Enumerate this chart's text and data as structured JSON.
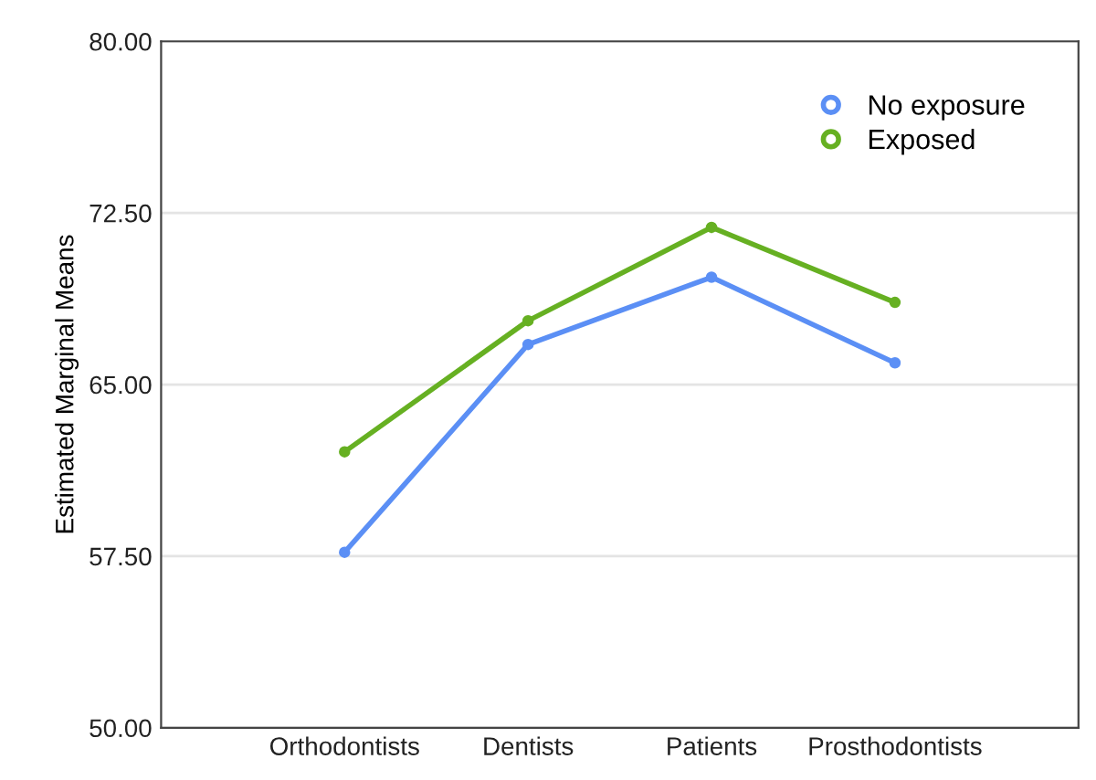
{
  "chart_data": {
    "type": "line",
    "ylabel": "Estimated Marginal Means",
    "categories": [
      "Orthodontists",
      "Dentists",
      "Patients",
      "Prosthodontists"
    ],
    "series": [
      {
        "name": "No exposure",
        "color": "#5b8ff5",
        "values": [
          57.67,
          66.75,
          69.69,
          65.95
        ]
      },
      {
        "name": "Exposed",
        "color": "#66b022",
        "values": [
          62.06,
          67.79,
          71.87,
          68.59
        ]
      }
    ],
    "ylim": [
      50,
      80
    ],
    "yticks": [
      {
        "value": 50,
        "label": "50.00"
      },
      {
        "value": 57.5,
        "label": "57.50"
      },
      {
        "value": 65,
        "label": "65.00"
      },
      {
        "value": 72.5,
        "label": "72.50"
      },
      {
        "value": 80,
        "label": "80.00"
      }
    ],
    "grid": "y",
    "legend": "top right",
    "marker": "circle"
  }
}
